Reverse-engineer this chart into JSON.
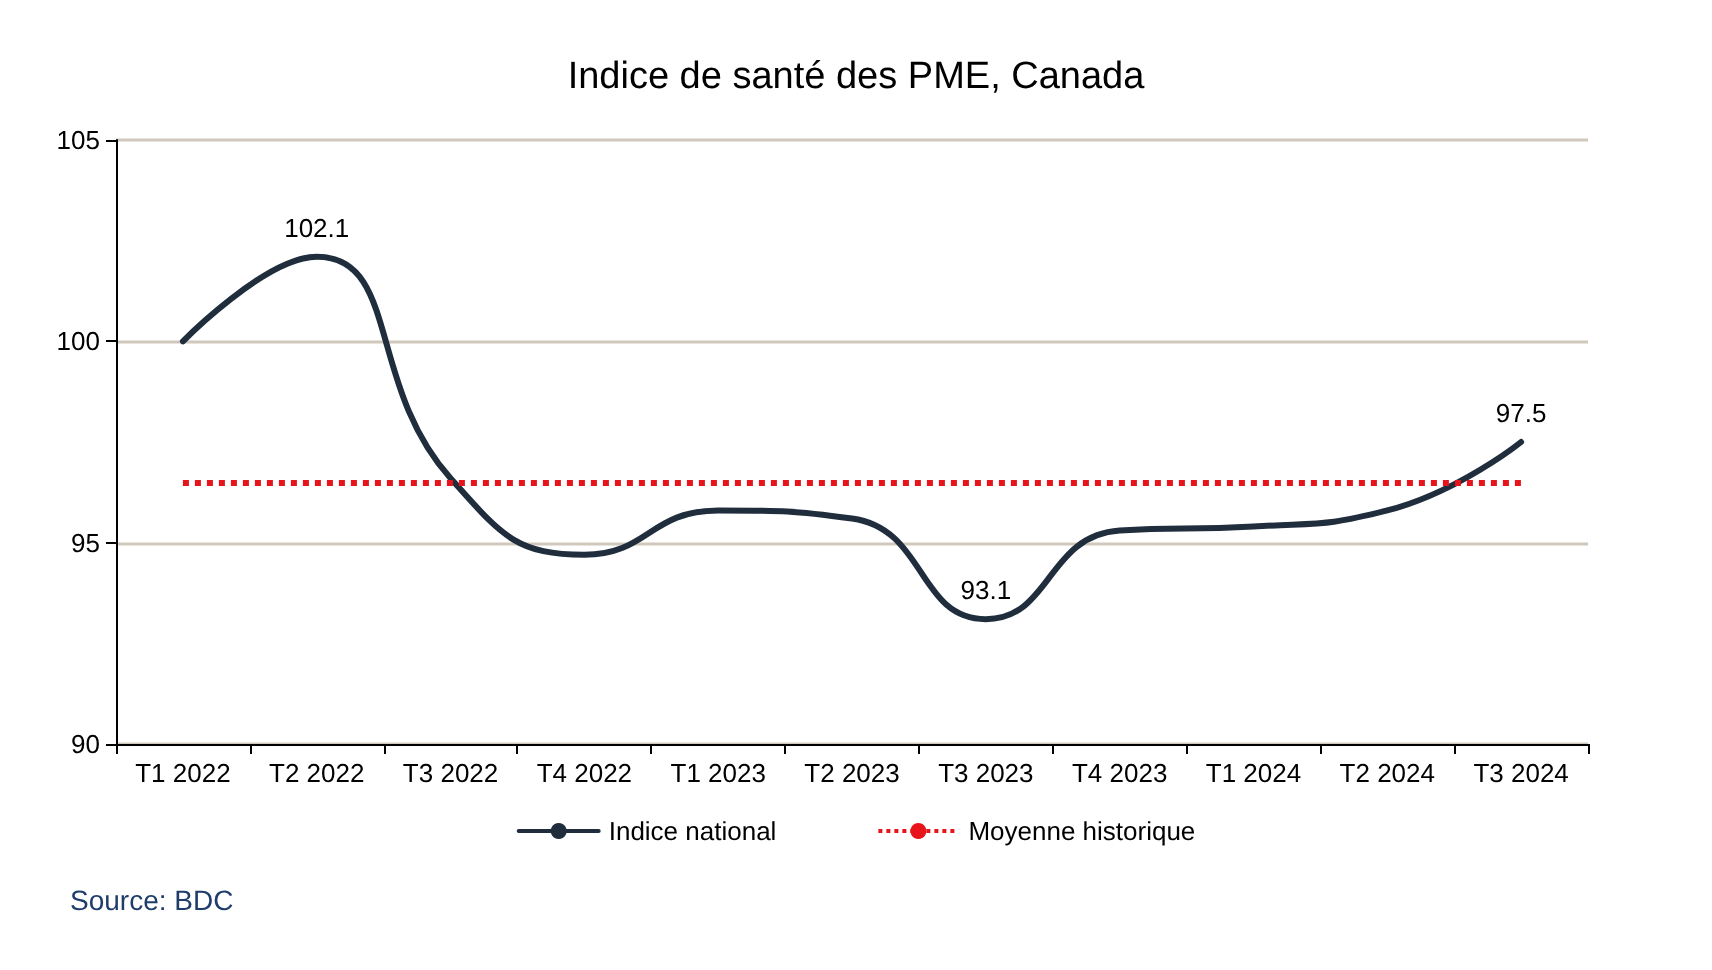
{
  "chart_data": {
    "type": "line",
    "title": "Indice de santé des PME, Canada",
    "categories": [
      "T1 2022",
      "T2 2022",
      "T3 2022",
      "T4 2022",
      "T1 2023",
      "T2 2023",
      "T3 2023",
      "T4 2023",
      "T1 2024",
      "T2 2024",
      "T3 2024"
    ],
    "series": [
      {
        "name": "Indice national",
        "color": "#1f2d3d",
        "values": [
          100.0,
          102.1,
          96.6,
          94.7,
          95.8,
          95.6,
          93.1,
          95.3,
          95.4,
          95.8,
          97.5
        ],
        "value_labels": [
          null,
          "102.1",
          null,
          null,
          null,
          null,
          "93.1",
          null,
          null,
          null,
          "97.5"
        ]
      }
    ],
    "ref_lines": [
      {
        "axis": "y",
        "value": 96.5,
        "label": "Moyenne historique",
        "color": "#e8141b",
        "line_style": "dotted"
      }
    ],
    "ylim": [
      90,
      105
    ],
    "yticks": [
      90,
      95,
      100,
      105
    ],
    "grid": "y",
    "legend": "bottom",
    "marker": "none",
    "line_style": "solid",
    "annotations": [
      "Source: BDC"
    ]
  }
}
